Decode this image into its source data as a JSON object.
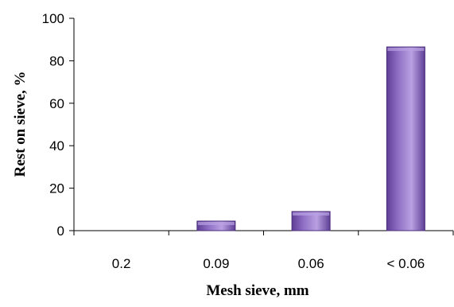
{
  "chart_data": {
    "type": "bar",
    "title": "",
    "categories": [
      "0.2",
      "0.09",
      "0.06",
      "< 0.06"
    ],
    "values": [
      0,
      4.5,
      9,
      86.5
    ],
    "xlabel": "Mesh sieve, mm",
    "ylabel": "Rest on sieve, %",
    "ylim": [
      0,
      100
    ],
    "yticks": [
      0,
      20,
      40,
      60,
      80,
      100
    ],
    "grid": false,
    "legend": "none",
    "colors": {
      "bar_fill": "#8f6fc4",
      "bar_dark": "#5f3f96",
      "bar_light": "#b9a1e2",
      "bar_stroke": "#4a2c7a"
    }
  }
}
